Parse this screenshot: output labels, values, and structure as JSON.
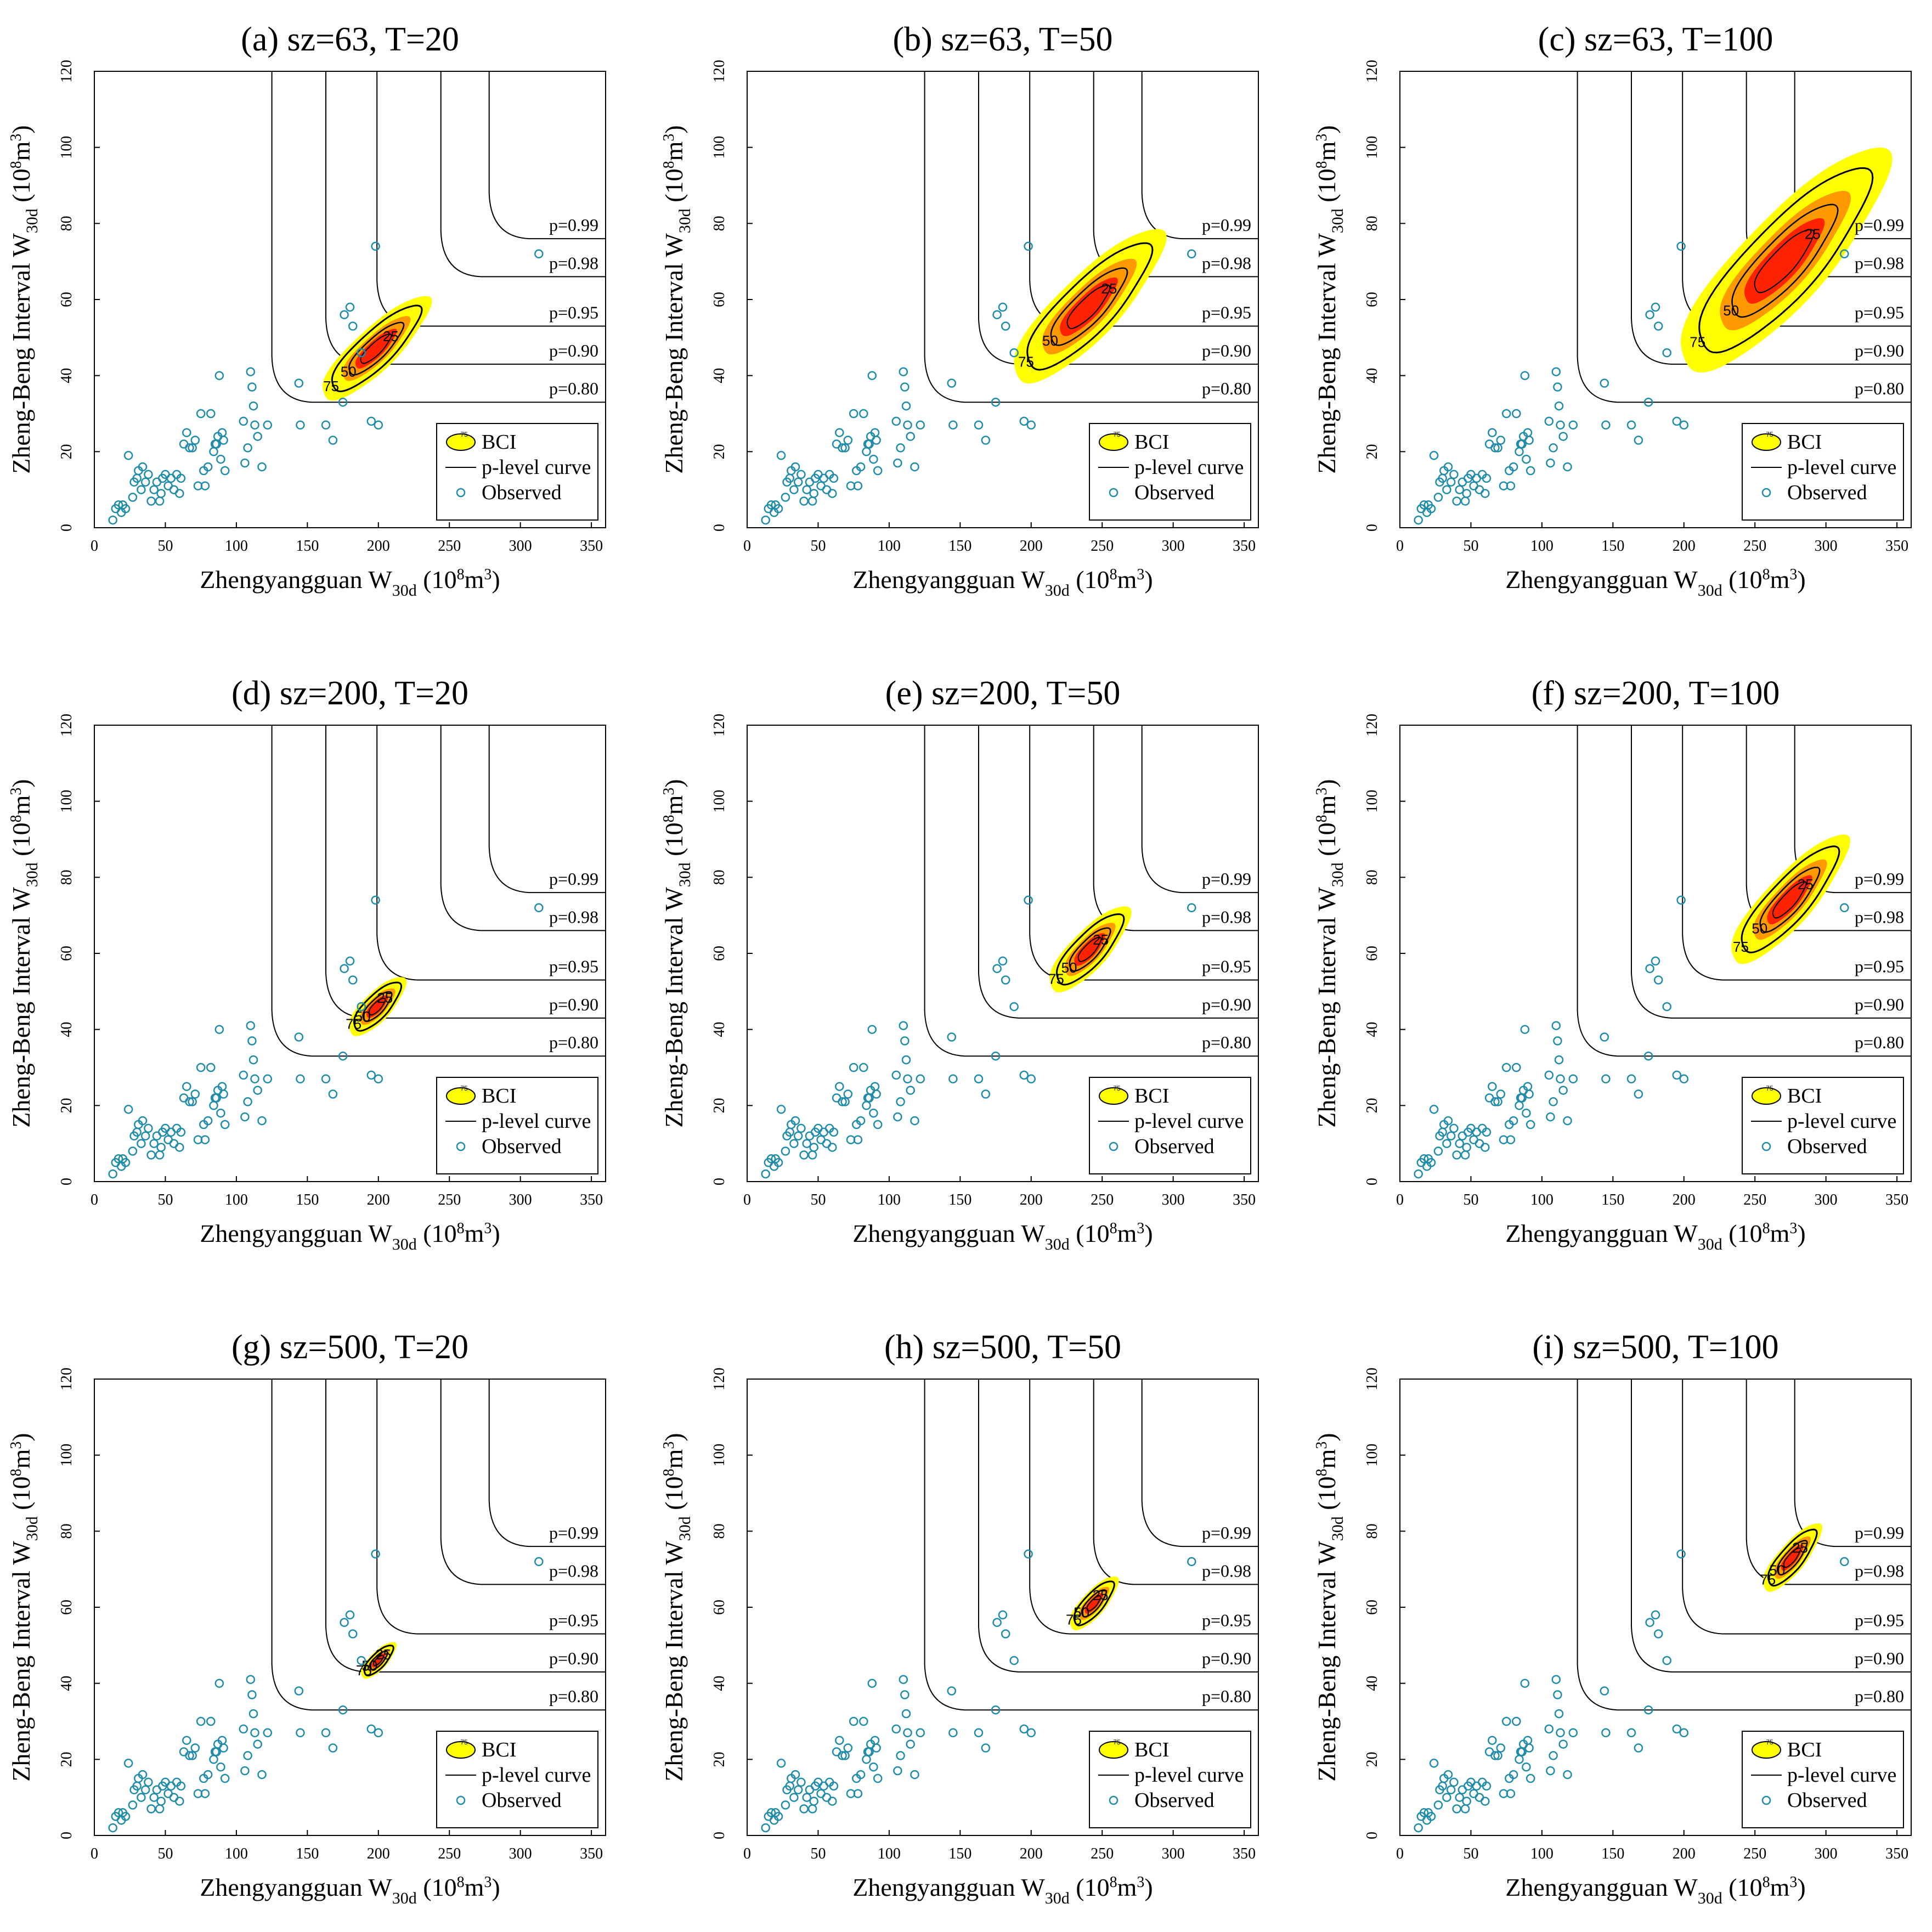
{
  "chart_data": {
    "type": "scatter",
    "axes": {
      "xlabel_main": "Zhengyangguan W",
      "xlabel_sub": "30d",
      "xlabel_unit_open": " (10",
      "xlabel_unit_sup1": "8",
      "xlabel_unit_mid": "m",
      "xlabel_unit_sup2": "3",
      "xlabel_unit_close": ")",
      "ylabel_main": "Zheng-Beng Interval W",
      "ylabel_sub": "30d",
      "ylabel_unit_open": " (10",
      "ylabel_unit_sup1": "8",
      "ylabel_unit_mid": "m",
      "ylabel_unit_sup2": "3",
      "ylabel_unit_close": ")",
      "xlim": [
        0,
        360
      ],
      "ylim": [
        0,
        120
      ],
      "xticks": [
        "0",
        "50",
        "100",
        "150",
        "200",
        "250",
        "300",
        "350"
      ],
      "yticks": [
        "0",
        "20",
        "40",
        "60",
        "80",
        "100",
        "120"
      ],
      "grid": false
    },
    "legend": {
      "position": "bottom-right",
      "bci_label": "BCI",
      "bci_icon_text": "75",
      "curve_label": "p-level curve",
      "observed_label": "Observed"
    },
    "p_levels": [
      {
        "label": "p=0.99",
        "x_asym": 278,
        "y_asym": 76
      },
      {
        "label": "p=0.98",
        "x_asym": 244,
        "y_asym": 66
      },
      {
        "label": "p=0.95",
        "x_asym": 199,
        "y_asym": 53
      },
      {
        "label": "p=0.90",
        "x_asym": 163,
        "y_asym": 43
      },
      {
        "label": "p=0.80",
        "x_asym": 125,
        "y_asym": 33
      }
    ],
    "contour_levels": [
      "25",
      "50",
      "75"
    ],
    "observed": [
      [
        13,
        2
      ],
      [
        15,
        5
      ],
      [
        17,
        6
      ],
      [
        19,
        4
      ],
      [
        20,
        6
      ],
      [
        22,
        5
      ],
      [
        24,
        19
      ],
      [
        27,
        8
      ],
      [
        28,
        12
      ],
      [
        30,
        13
      ],
      [
        31,
        15
      ],
      [
        33,
        10
      ],
      [
        34,
        16
      ],
      [
        36,
        12
      ],
      [
        38,
        14
      ],
      [
        40,
        7
      ],
      [
        42,
        10
      ],
      [
        44,
        12
      ],
      [
        46,
        7
      ],
      [
        47,
        9
      ],
      [
        48,
        13
      ],
      [
        50,
        14
      ],
      [
        52,
        11
      ],
      [
        54,
        13
      ],
      [
        56,
        10
      ],
      [
        58,
        14
      ],
      [
        60,
        9
      ],
      [
        61,
        13
      ],
      [
        63,
        22
      ],
      [
        65,
        25
      ],
      [
        67,
        21
      ],
      [
        69,
        21
      ],
      [
        71,
        23
      ],
      [
        73,
        11
      ],
      [
        75,
        30
      ],
      [
        77,
        15
      ],
      [
        78,
        11
      ],
      [
        80,
        16
      ],
      [
        82,
        30
      ],
      [
        84,
        20
      ],
      [
        85,
        22
      ],
      [
        86,
        22
      ],
      [
        87,
        24
      ],
      [
        88,
        40
      ],
      [
        89,
        18
      ],
      [
        90,
        25
      ],
      [
        91,
        23
      ],
      [
        92,
        15
      ],
      [
        105,
        28
      ],
      [
        106,
        17
      ],
      [
        108,
        21
      ],
      [
        110,
        41
      ],
      [
        111,
        37
      ],
      [
        112,
        32
      ],
      [
        113,
        27
      ],
      [
        115,
        24
      ],
      [
        118,
        16
      ],
      [
        122,
        27
      ],
      [
        144,
        38
      ],
      [
        145,
        27
      ],
      [
        163,
        27
      ],
      [
        168,
        23
      ],
      [
        175,
        33
      ],
      [
        176,
        56
      ],
      [
        180,
        58
      ],
      [
        182,
        53
      ],
      [
        188,
        46
      ],
      [
        195,
        28
      ],
      [
        198,
        74
      ],
      [
        200,
        27
      ],
      [
        313,
        72
      ]
    ],
    "panels": [
      {
        "title": "(a) sz=63, T=20",
        "bci": {
          "cx": 198,
          "cy": 47,
          "a": 40,
          "b": 7.0,
          "tilt": 0.3125
        }
      },
      {
        "title": "(b) sz=63, T=50",
        "bci": {
          "cx": 240,
          "cy": 58,
          "a": 56,
          "b": 10.5,
          "tilt": 0.33
        }
      },
      {
        "title": "(c) sz=63, T=100",
        "bci": {
          "cx": 270,
          "cy": 70,
          "a": 78,
          "b": 15.0,
          "tilt": 0.35
        }
      },
      {
        "title": "(d) sz=200, T=20",
        "bci": {
          "cx": 199,
          "cy": 46,
          "a": 21,
          "b": 4.8,
          "tilt": 0.31
        }
      },
      {
        "title": "(e) sz=200, T=50",
        "bci": {
          "cx": 241,
          "cy": 61,
          "a": 30,
          "b": 6.5,
          "tilt": 0.33
        }
      },
      {
        "title": "(f) sz=200, T=100",
        "bci": {
          "cx": 274,
          "cy": 74,
          "a": 44,
          "b": 8.5,
          "tilt": 0.36
        }
      },
      {
        "title": "(g) sz=500, T=20",
        "bci": {
          "cx": 200,
          "cy": 46,
          "a": 13,
          "b": 3.0,
          "tilt": 0.31
        }
      },
      {
        "title": "(h) sz=500, T=50",
        "bci": {
          "cx": 244,
          "cy": 61,
          "a": 18,
          "b": 4.2,
          "tilt": 0.34
        }
      },
      {
        "title": "(i) sz=500, T=100",
        "bci": {
          "cx": 276,
          "cy": 73,
          "a": 22,
          "b": 5.0,
          "tilt": 0.37
        }
      }
    ],
    "colors": {
      "yellow": "#ffff00",
      "orange": "#ff9900",
      "red": "#ff2200",
      "observed": "#1e8ba8",
      "curve": "#000000",
      "frame": "#000000"
    }
  }
}
